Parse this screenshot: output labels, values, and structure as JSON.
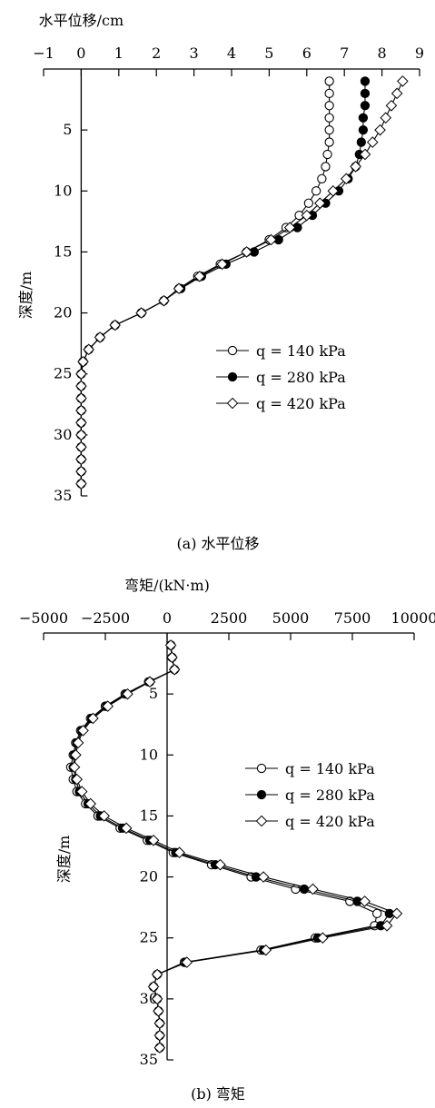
{
  "chart_data": [
    {
      "type": "line",
      "caption": "(a) 水平位移",
      "xlabel": "水平位移/cm",
      "ylabel": "深度/m",
      "xlim": [
        -1,
        9
      ],
      "ylim": [
        0,
        35
      ],
      "x_axis_position": "top",
      "y_axis_inverted": true,
      "xticks": [
        -1,
        0,
        1,
        2,
        3,
        4,
        5,
        6,
        7,
        8,
        9
      ],
      "xtick_labels": [
        "−1",
        "0",
        "1",
        "2",
        "3",
        "4",
        "5",
        "6",
        "7",
        "8",
        "9"
      ],
      "yticks": [
        5,
        10,
        15,
        20,
        25,
        30,
        35
      ],
      "ytick_labels": [
        "5",
        "10",
        "15",
        "20",
        "25",
        "30",
        "35"
      ],
      "grid": false,
      "legend_position": "right",
      "depth": [
        1,
        2,
        3,
        4,
        5,
        6,
        7,
        8,
        9,
        10,
        11,
        12,
        13,
        14,
        15,
        16,
        17,
        18,
        19,
        20,
        21,
        22,
        23,
        24,
        25,
        26,
        27,
        28,
        29,
        30,
        31,
        32,
        33,
        34
      ],
      "series": [
        {
          "name": "q = 140 kPa",
          "marker": "open-circle",
          "values": [
            6.6,
            6.6,
            6.6,
            6.6,
            6.6,
            6.6,
            6.55,
            6.5,
            6.4,
            6.25,
            6.05,
            5.8,
            5.45,
            5.0,
            4.4,
            3.7,
            3.1,
            2.6,
            2.2,
            1.6,
            0.9,
            0.5,
            0.2,
            0.05,
            0,
            0,
            0,
            0,
            0,
            0,
            0,
            0,
            0,
            0
          ]
        },
        {
          "name": "q = 280 kPa",
          "marker": "filled-circle",
          "values": [
            7.55,
            7.55,
            7.55,
            7.5,
            7.5,
            7.45,
            7.4,
            7.3,
            7.1,
            6.85,
            6.5,
            6.15,
            5.75,
            5.25,
            4.6,
            3.85,
            3.2,
            2.65,
            2.2,
            1.6,
            0.9,
            0.5,
            0.2,
            0.05,
            0,
            0,
            0,
            0,
            0,
            0,
            0,
            0,
            0,
            0
          ]
        },
        {
          "name": "q = 420 kPa",
          "marker": "open-diamond",
          "values": [
            8.55,
            8.4,
            8.25,
            8.1,
            7.95,
            7.75,
            7.55,
            7.3,
            7.05,
            6.7,
            6.35,
            6.0,
            5.55,
            5.05,
            4.4,
            3.75,
            3.15,
            2.6,
            2.2,
            1.6,
            0.9,
            0.5,
            0.2,
            0.05,
            0,
            0,
            0,
            0,
            0,
            0,
            0,
            0,
            0,
            0
          ]
        }
      ]
    },
    {
      "type": "line",
      "caption": "(b) 弯矩",
      "xlabel": "弯矩/(kN·m)",
      "ylabel": "深度/m",
      "xlim": [
        -5000,
        10000
      ],
      "ylim": [
        0,
        35
      ],
      "x_axis_position": "top",
      "y_axis_inverted": true,
      "xticks": [
        -5000,
        -2500,
        0,
        2500,
        5000,
        7500,
        10000
      ],
      "xtick_labels": [
        "−5000",
        "−2500",
        "0",
        "2500",
        "5000",
        "7500",
        "10000"
      ],
      "yticks": [
        5,
        10,
        15,
        20,
        25,
        30,
        35
      ],
      "ytick_labels": [
        "5",
        "10",
        "15",
        "20",
        "25",
        "30",
        "35"
      ],
      "grid": false,
      "legend_position": "right",
      "depth": [
        1,
        2,
        3,
        4,
        5,
        6,
        7,
        8,
        9,
        10,
        11,
        12,
        13,
        14,
        15,
        16,
        17,
        18,
        19,
        20,
        21,
        22,
        23,
        24,
        25,
        26,
        27,
        28,
        29,
        30,
        31,
        32,
        33,
        34
      ],
      "series": [
        {
          "name": "q = 140 kPa",
          "marker": "open-circle",
          "values": [
            150,
            200,
            300,
            -750,
            -1700,
            -2500,
            -3100,
            -3500,
            -3700,
            -3800,
            -3900,
            -3800,
            -3650,
            -3300,
            -2800,
            -1900,
            -800,
            250,
            1800,
            3400,
            5200,
            7400,
            8500,
            8400,
            6000,
            3800,
            700,
            -400,
            -550,
            -400,
            -350,
            -300,
            -300,
            -300
          ]
        },
        {
          "name": "q = 280 kPa",
          "marker": "filled-circle",
          "values": [
            150,
            200,
            300,
            -700,
            -1650,
            -2450,
            -3050,
            -3450,
            -3650,
            -3750,
            -3800,
            -3700,
            -3550,
            -3200,
            -2700,
            -1800,
            -700,
            350,
            1950,
            3600,
            5550,
            7700,
            9000,
            8650,
            6100,
            3900,
            750,
            -400,
            -550,
            -400,
            -350,
            -300,
            -300,
            -300
          ]
        },
        {
          "name": "q = 420 kPa",
          "marker": "open-diamond",
          "values": [
            150,
            200,
            300,
            -700,
            -1600,
            -2400,
            -3000,
            -3400,
            -3600,
            -3700,
            -3750,
            -3650,
            -3450,
            -3100,
            -2550,
            -1650,
            -550,
            500,
            2150,
            3900,
            5900,
            8000,
            9300,
            8900,
            6300,
            4000,
            800,
            -400,
            -550,
            -400,
            -350,
            -300,
            -300,
            -300
          ]
        }
      ]
    }
  ]
}
